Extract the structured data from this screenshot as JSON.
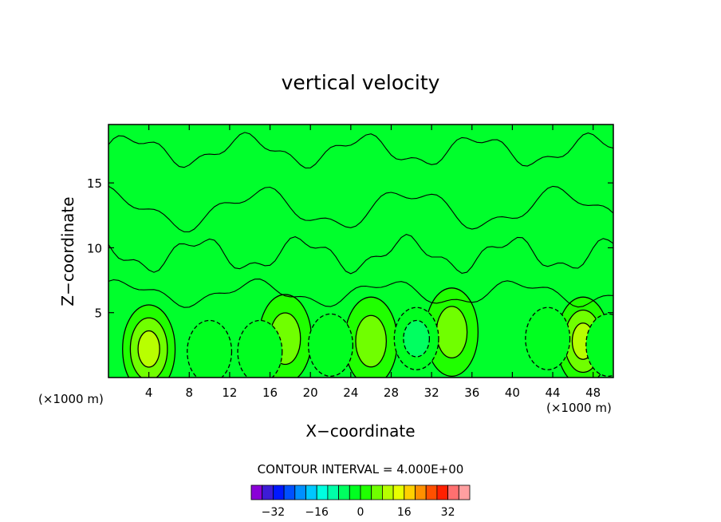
{
  "chart_data": {
    "type": "heatmap",
    "title": "vertical velocity",
    "xlabel": "X−coordinate",
    "ylabel": "Z−coordinate",
    "x_scale_note_left": "(×1000 m)",
    "x_scale_note_right": "(×1000 m)",
    "xlim": [
      0,
      50
    ],
    "ylim": [
      0,
      19.5
    ],
    "x_ticks": [
      4,
      8,
      12,
      16,
      20,
      24,
      28,
      32,
      36,
      40,
      44,
      48
    ],
    "y_ticks": [
      5,
      10,
      15
    ],
    "contour_interval_label": "CONTOUR INTERVAL = 4.000E+00",
    "contour_interval": 4.0,
    "colorbar": {
      "levels": [
        -36,
        -32,
        -28,
        -24,
        -20,
        -16,
        -12,
        -8,
        -4,
        0,
        4,
        8,
        12,
        16,
        20,
        24,
        28,
        32,
        36
      ],
      "tick_values": [
        -32,
        -16,
        0,
        16,
        32
      ],
      "tick_labels": [
        "−32",
        "−16",
        "0",
        "16",
        "32"
      ],
      "colors": [
        "#8a00d8",
        "#3d1cd6",
        "#0018ff",
        "#0050ff",
        "#0090ff",
        "#00c8ff",
        "#00ffe0",
        "#00ffa8",
        "#00ff60",
        "#00ff20",
        "#20ff00",
        "#70ff00",
        "#b8ff00",
        "#e8ff00",
        "#ffd000",
        "#ff9000",
        "#ff5000",
        "#ff2000",
        "#ff7070",
        "#ff9fa0"
      ]
    },
    "background_color": "#00ff2c",
    "features": [
      {
        "kind": "updraft",
        "x": 4.0,
        "z": 2.2,
        "peak": 12
      },
      {
        "kind": "updraft",
        "x": 17.5,
        "z": 3.0,
        "peak": 8
      },
      {
        "kind": "updraft",
        "x": 26.0,
        "z": 2.8,
        "peak": 8
      },
      {
        "kind": "updraft",
        "x": 34.0,
        "z": 3.5,
        "peak": 8
      },
      {
        "kind": "updraft",
        "x": 47.0,
        "z": 2.8,
        "peak": 12
      },
      {
        "kind": "downdraft",
        "x": 10.0,
        "z": 2.0,
        "peak": -4
      },
      {
        "kind": "downdraft",
        "x": 15.0,
        "z": 2.0,
        "peak": -4
      },
      {
        "kind": "downdraft",
        "x": 22.0,
        "z": 2.5,
        "peak": -4
      },
      {
        "kind": "downdraft",
        "x": 30.5,
        "z": 3.0,
        "peak": -8
      },
      {
        "kind": "downdraft",
        "x": 43.5,
        "z": 3.0,
        "peak": -4
      },
      {
        "kind": "downdraft",
        "x": 49.5,
        "z": 2.5,
        "peak": -4
      }
    ]
  }
}
